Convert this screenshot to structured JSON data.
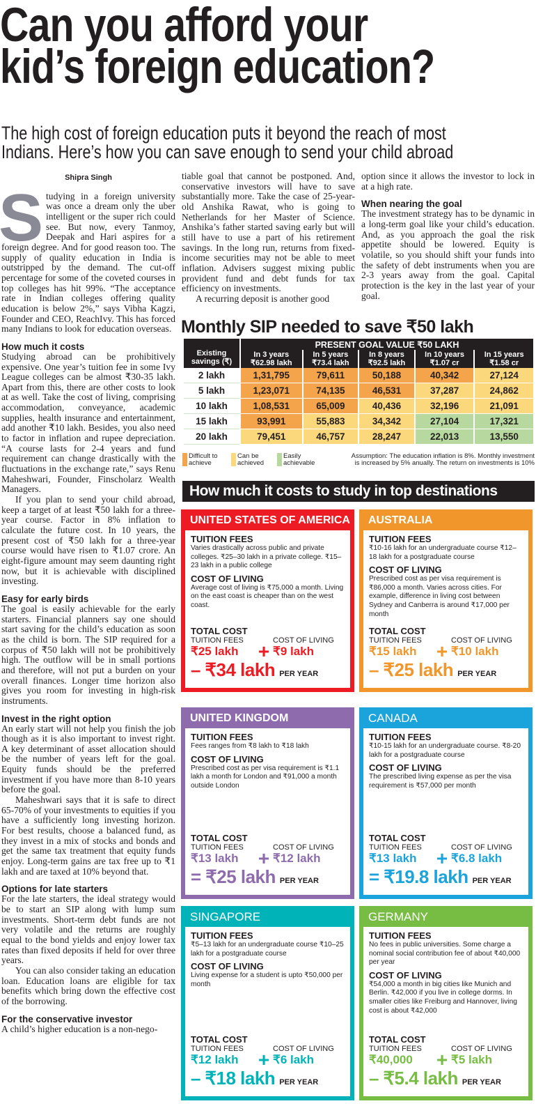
{
  "headline": {
    "line1": "Can you afford your",
    "line2": "kid’s foreign education?"
  },
  "subheadline": {
    "line1": "The high cost of foreign education puts it beyond the reach of most",
    "line2": "Indians. Here’s how you can save enough to send your child abroad"
  },
  "byline": "Shipra Singh",
  "column1": {
    "drop_cap": "S",
    "intro": "tudying in a foreign university was once a dream only the uber intelligent or the super rich could see. But now, every Tanmoy, Deepak and Hari aspires for a foreign degree. And for good reason too. The supply of quality education in India is outstripped by the demand. The cut-off percentage for some of the coveted courses in top colleges has hit 99%. “The acceptance rate in Indian colleges offering quality education is below 2%,” says Vibha Kagzi, Founder and CEO, ReachIvy. This has forced many Indians to look for education overseas.",
    "h_costs": "How much it costs",
    "costs_p1": "Studying abroad can be prohibitively expensive. One year’s tuition fee in some Ivy League colleges can be almost ₹30-35 lakh. Apart from this, there are other costs to look at as well. Take the cost of living, comprising accommodation, conveyance, academic supplies, health insurance and entertainment, add another ₹10 lakh. Besides, you also need to factor in inflation and rupee depreciation. “A course lasts for 2-4 years and fund requirement can change drastically with the fluctuations in the exchange rate,” says Renu Maheshwari, Founder, Finscholarz Wealth Managers.",
    "costs_p2": "If you plan to send your child abroad, keep a target of at least ₹50 lakh for a three-year course. Factor in 8% inflation to calculate the future cost. In 10 years, the present cost of ₹50 lakh for a three-year course would have risen to ₹1.07 crore. An eight-figure amount may seem daunting right now, but it is achievable with disciplined investing.",
    "h_early": "Easy for early birds",
    "early_p": "The goal is easily achievable for the early starters. Financial planners say one should start saving for the child’s education as soon as the child is born. The SIP required for a corpus of ₹50 lakh will not be prohibitively high. The outflow will be in small portions and therefore, will not put a burden on your overall finances. Longer time horizon also gives you room for investing in high-risk instruments.",
    "h_invest": "Invest in the right option",
    "invest_p1": "An early start will not help you finish the job though as it is also important to invest right. A key determinant of asset allocation should be the number of years left for the goal. Equity funds should be the preferred investment if you have more than 8-10 years before the goal.",
    "invest_p2": "Maheshwari says that it is safe to direct 65-70% of your investments to equities if you have a sufficiently long investing horizon. For best results, choose a balanced fund, as they invest in a mix of stocks and bonds and get the same tax treatment that equity funds enjoy. Long-term gains are tax free up to ₹1 lakh and are taxed at 10% beyond that.",
    "h_late": "Options for late starters",
    "late_p1": "For the late starters, the ideal strategy would be to start an SIP along with lump sum investments. Short-term debt funds are not very volatile and the returns are roughly equal to the bond yields and enjoy lower tax rates than fixed deposits if held for over three years.",
    "late_p2": "You can also consider taking an education loan. Education loans are eligible for tax benefits which bring down the effective cost of the borrowing.",
    "h_cons": "For the conservative investor",
    "cons_p": "A child’s higher education is a non-nego-"
  },
  "column2": {
    "p1": "tiable goal that cannot be postponed. And, conservative investors will have to save substantially more. Take the case of 25-year-old Anshika Rawat, who is going to Netherlands for her Master of Science. Anshika’s father started saving early but will still have to use a part of his retirement savings. In the long run, returns from fixed-income securities may not be able to meet inflation. Advisers suggest mixing public provident fund and debt funds for tax efficiency on investments.",
    "p2": "A recurring deposit is another good"
  },
  "column3": {
    "p1": "option since it allows the investor to lock in at a high rate.",
    "h_goal": "When nearing the goal",
    "p2": "The investment strategy has to be dynamic in a long-term goal like your child’s education. And, as you approach the goal the risk appetite should be lowered. Equity is volatile, so you should shift your funds into the safety of debt instruments when you are 2-3 years away from the goal. Capital protection is the key in the last year of your goal."
  },
  "sip_table": {
    "title": "Monthly SIP needed to save ₹50 lakh",
    "group_header": "PRESENT GOAL VALUE ₹50 LAKH",
    "row_header": "Existing savings (₹)",
    "columns": [
      {
        "label": "In 3 years",
        "value": "₹62.98 lakh"
      },
      {
        "label": "In 5 years",
        "value": "₹73.4 lakh"
      },
      {
        "label": "In 8 years",
        "value": "₹92.5 lakh"
      },
      {
        "label": "In 10 years",
        "value": "₹1.07 cr"
      },
      {
        "label": "In 15 years",
        "value": "₹1.58 cr"
      }
    ],
    "rows": [
      {
        "savings": "2 lakh",
        "values": [
          "1,31,795",
          "79,611",
          "50,188",
          "40,342",
          "27,124"
        ],
        "levels": [
          "O",
          "O",
          "O",
          "O",
          "Y"
        ]
      },
      {
        "savings": "5 lakh",
        "values": [
          "1,23,071",
          "74,135",
          "46,531",
          "37,287",
          "24,862"
        ],
        "levels": [
          "O",
          "O",
          "O",
          "Y",
          "Y"
        ]
      },
      {
        "savings": "10 lakh",
        "values": [
          "1,08,531",
          "65,009",
          "40,436",
          "32,196",
          "21,091"
        ],
        "levels": [
          "O",
          "O",
          "Y",
          "Y",
          "Y"
        ]
      },
      {
        "savings": "15 lakh",
        "values": [
          "93,991",
          "55,883",
          "34,342",
          "27,104",
          "17,321"
        ],
        "levels": [
          "O",
          "Y",
          "Y",
          "G",
          "G"
        ]
      },
      {
        "savings": "20 lakh",
        "values": [
          "79,451",
          "46,757",
          "28,247",
          "22,013",
          "13,550"
        ],
        "levels": [
          "Y",
          "Y",
          "Y",
          "G",
          "G"
        ]
      }
    ],
    "legend": [
      {
        "key": "O",
        "label1": "Difficult to",
        "label2": "achieve",
        "color": "#f4a44a"
      },
      {
        "key": "Y",
        "label1": "Can be",
        "label2": "achieved",
        "color": "#fcd87c"
      },
      {
        "key": "G",
        "label1": "Easily",
        "label2": "achievable",
        "color": "#b7d89e"
      }
    ],
    "assumption1": "Assumption: The education inflation is 8%. Monthly investment",
    "assumption2": "is increased by 5% anually. The return on investments is 10%"
  },
  "destinations": {
    "title": "How much it costs to study in top destinations",
    "labels": {
      "tuition": "TUITION FEES",
      "living": "COST OF LIVING",
      "total": "TOTAL COST",
      "per_year": "PER YEAR",
      "plus": "+"
    },
    "cards": [
      {
        "country": "UNITED STATES OF AMERICA",
        "color": "#ed1c24",
        "tuition_text": "Varies drastically across public and private colleges. ₹25–30 lakh in a private college. ₹15–23 lakh in a public college",
        "living_text": "Average cost of living is ₹75,000 a month. Living on the east coast is cheaper than on the west coast.",
        "tuition_value": "₹25 lakh",
        "living_value": "₹9 lakh",
        "equals": "–",
        "total_value": "₹34 lakh"
      },
      {
        "country": "AUSTRALIA",
        "color": "#f0962a",
        "tuition_text": "₹10-16 lakh for an undergraduate course ₹12–18 lakh for a postgraduate course",
        "living_text": "Prescribed cost as per visa requirement is ₹86,000 a month. Varies across cities. For example, difference in living cost between Sydney and Canberra is around ₹17,000 per month",
        "tuition_value": "₹15 lakh",
        "living_value": "₹10 lakh",
        "equals": "–",
        "total_value": "₹25 lakh"
      },
      {
        "country": "UNITED KINGDOM",
        "color": "#8e6bad",
        "tuition_text": "Fees ranges from ₹8 lakh to ₹18 lakh",
        "living_text": "Prescribed cost as per visa requirement is ₹1.1 lakh a month for London and ₹91,000 a month outside London",
        "tuition_value": "₹13 lakh",
        "living_value": "₹12 lakh",
        "equals": "=",
        "total_value": "₹25 lakh"
      },
      {
        "country": "CANADA",
        "color": "#1ba3dc",
        "tuition_text": "₹10-15 lakh for an undergraduate course. ₹8-20 lakh for a postgraduate course",
        "living_text": "The prescribed living expense as per the visa requirement is ₹57,000 per month",
        "tuition_value": "₹13 lakh",
        "living_value": "₹6.8 lakh",
        "equals": "=",
        "total_value": "₹19.8 lakh"
      },
      {
        "country": "SINGAPORE",
        "color": "#00b3b9",
        "tuition_text": "₹5–13 lakh for an undergraduate course ₹10–25 lakh for a postgraduate course",
        "living_text": "Living expense for a student is upto ₹50,000 per month",
        "tuition_value": "₹12 lakh",
        "living_value": "₹6 lakh",
        "equals": "–",
        "total_value": "₹18 lakh"
      },
      {
        "country": "GERMANY",
        "color": "#77bc43",
        "tuition_text": "No fees in public universities. Some charge a nominal social contribution fee of about ₹40,000 per year",
        "living_text": "₹54,000 a month in big cities like Munich and Berlin. ₹42,000 if you live in college dorms. In smaller cities like Freiburg and Hannover, living cost is about ₹42,000",
        "tuition_value": "₹40,000",
        "living_value": "₹5 lakh",
        "equals": "–",
        "total_value": "₹5.4 lakh"
      }
    ]
  }
}
